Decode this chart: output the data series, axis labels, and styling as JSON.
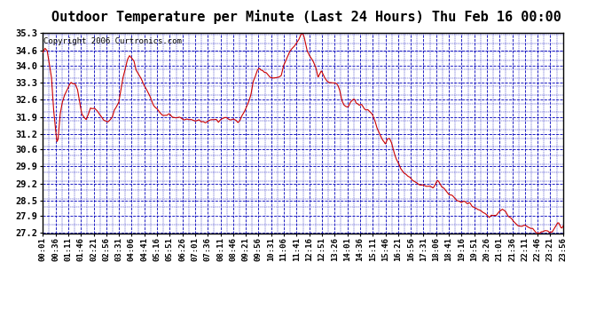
{
  "title": "Outdoor Temperature per Minute (Last 24 Hours) Thu Feb 16 00:00",
  "copyright": "Copyright 2006 Curtronics.com",
  "ylabel_values": [
    35.3,
    34.6,
    34.0,
    33.3,
    32.6,
    31.9,
    31.2,
    30.6,
    29.9,
    29.2,
    28.5,
    27.9,
    27.2
  ],
  "y_min": 27.2,
  "y_max": 35.3,
  "x_tick_labels": [
    "00:01",
    "00:36",
    "01:11",
    "01:46",
    "02:21",
    "02:56",
    "03:31",
    "04:06",
    "04:41",
    "05:16",
    "05:51",
    "06:26",
    "07:01",
    "07:36",
    "08:11",
    "08:46",
    "09:21",
    "09:56",
    "10:31",
    "11:06",
    "11:41",
    "12:16",
    "12:51",
    "13:26",
    "14:01",
    "14:36",
    "15:11",
    "15:46",
    "16:21",
    "16:56",
    "17:31",
    "18:06",
    "18:41",
    "19:16",
    "19:51",
    "20:26",
    "21:01",
    "21:36",
    "22:11",
    "22:46",
    "23:21",
    "23:56"
  ],
  "line_color": "#cc0000",
  "grid_color": "#0000bb",
  "bg_color": "#ffffff",
  "plot_bg_color": "#ffffff",
  "title_fontsize": 11,
  "copyright_fontsize": 6.5,
  "tick_fontsize": 6.5,
  "y_tick_fontsize": 7.5,
  "keypoints": [
    [
      0.0,
      34.5
    ],
    [
      0.1,
      34.7
    ],
    [
      0.2,
      34.6
    ],
    [
      0.4,
      33.5
    ],
    [
      0.5,
      32.2
    ],
    [
      0.6,
      31.3
    ],
    [
      0.65,
      30.9
    ],
    [
      0.7,
      31.0
    ],
    [
      0.75,
      31.5
    ],
    [
      0.8,
      32.0
    ],
    [
      0.9,
      32.5
    ],
    [
      1.0,
      32.8
    ],
    [
      1.1,
      33.0
    ],
    [
      1.3,
      33.3
    ],
    [
      1.5,
      33.2
    ],
    [
      1.6,
      33.0
    ],
    [
      1.7,
      32.5
    ],
    [
      1.8,
      32.0
    ],
    [
      1.9,
      31.9
    ],
    [
      2.0,
      31.8
    ],
    [
      2.1,
      32.0
    ],
    [
      2.2,
      32.3
    ],
    [
      2.4,
      32.3
    ],
    [
      2.5,
      32.2
    ],
    [
      2.6,
      32.0
    ],
    [
      2.8,
      31.8
    ],
    [
      3.0,
      31.7
    ],
    [
      3.1,
      31.8
    ],
    [
      3.2,
      31.9
    ],
    [
      3.3,
      32.2
    ],
    [
      3.5,
      32.5
    ],
    [
      3.7,
      33.5
    ],
    [
      3.9,
      34.2
    ],
    [
      4.0,
      34.4
    ],
    [
      4.1,
      34.3
    ],
    [
      4.2,
      34.2
    ],
    [
      4.3,
      33.8
    ],
    [
      4.5,
      33.5
    ],
    [
      4.7,
      33.2
    ],
    [
      4.9,
      32.8
    ],
    [
      5.0,
      32.6
    ],
    [
      5.1,
      32.4
    ],
    [
      5.2,
      32.3
    ],
    [
      5.3,
      32.2
    ],
    [
      5.5,
      32.0
    ],
    [
      5.7,
      32.0
    ],
    [
      5.9,
      32.0
    ],
    [
      6.0,
      31.9
    ],
    [
      6.2,
      31.9
    ],
    [
      6.4,
      31.9
    ],
    [
      6.5,
      31.8
    ],
    [
      6.7,
      31.8
    ],
    [
      6.9,
      31.8
    ],
    [
      7.0,
      31.8
    ],
    [
      7.2,
      31.8
    ],
    [
      7.3,
      31.7
    ],
    [
      7.5,
      31.7
    ],
    [
      7.7,
      31.8
    ],
    [
      7.9,
      31.8
    ],
    [
      8.0,
      31.8
    ],
    [
      8.1,
      31.7
    ],
    [
      8.2,
      31.8
    ],
    [
      8.4,
      31.9
    ],
    [
      8.5,
      31.9
    ],
    [
      8.7,
      31.8
    ],
    [
      8.9,
      31.8
    ],
    [
      9.0,
      31.7
    ],
    [
      9.1,
      31.8
    ],
    [
      9.2,
      32.0
    ],
    [
      9.4,
      32.3
    ],
    [
      9.5,
      32.5
    ],
    [
      9.6,
      32.8
    ],
    [
      9.7,
      33.3
    ],
    [
      9.8,
      33.5
    ],
    [
      9.9,
      33.8
    ],
    [
      10.0,
      33.9
    ],
    [
      10.1,
      33.8
    ],
    [
      10.2,
      33.7
    ],
    [
      10.3,
      33.7
    ],
    [
      10.4,
      33.6
    ],
    [
      10.5,
      33.5
    ],
    [
      10.6,
      33.5
    ],
    [
      10.7,
      33.5
    ],
    [
      10.8,
      33.5
    ],
    [
      10.9,
      33.5
    ],
    [
      11.0,
      33.6
    ],
    [
      11.05,
      33.8
    ],
    [
      11.1,
      34.0
    ],
    [
      11.2,
      34.2
    ],
    [
      11.3,
      34.4
    ],
    [
      11.35,
      34.5
    ],
    [
      11.4,
      34.6
    ],
    [
      11.5,
      34.7
    ],
    [
      11.6,
      34.8
    ],
    [
      11.7,
      34.9
    ],
    [
      11.8,
      35.0
    ],
    [
      11.85,
      35.1
    ],
    [
      11.9,
      35.2
    ],
    [
      11.95,
      35.3
    ],
    [
      12.0,
      35.3
    ],
    [
      12.05,
      35.2
    ],
    [
      12.1,
      35.0
    ],
    [
      12.15,
      34.8
    ],
    [
      12.2,
      34.6
    ],
    [
      12.3,
      34.4
    ],
    [
      12.4,
      34.3
    ],
    [
      12.5,
      34.1
    ],
    [
      12.6,
      33.9
    ],
    [
      12.65,
      33.7
    ],
    [
      12.7,
      33.5
    ],
    [
      12.75,
      33.6
    ],
    [
      12.8,
      33.7
    ],
    [
      12.85,
      33.8
    ],
    [
      12.9,
      33.7
    ],
    [
      13.0,
      33.5
    ],
    [
      13.1,
      33.4
    ],
    [
      13.2,
      33.3
    ],
    [
      13.3,
      33.3
    ],
    [
      13.4,
      33.3
    ],
    [
      13.5,
      33.3
    ],
    [
      13.6,
      33.2
    ],
    [
      13.7,
      33.0
    ],
    [
      13.75,
      32.8
    ],
    [
      13.8,
      32.6
    ],
    [
      13.85,
      32.5
    ],
    [
      13.9,
      32.4
    ],
    [
      14.0,
      32.3
    ],
    [
      14.1,
      32.3
    ],
    [
      14.15,
      32.4
    ],
    [
      14.2,
      32.5
    ],
    [
      14.3,
      32.6
    ],
    [
      14.4,
      32.6
    ],
    [
      14.45,
      32.5
    ],
    [
      14.5,
      32.5
    ],
    [
      14.6,
      32.4
    ],
    [
      14.7,
      32.4
    ],
    [
      14.8,
      32.3
    ],
    [
      14.9,
      32.2
    ],
    [
      15.0,
      32.2
    ],
    [
      15.1,
      32.1
    ],
    [
      15.2,
      32.0
    ],
    [
      15.3,
      31.8
    ],
    [
      15.4,
      31.5
    ],
    [
      15.5,
      31.3
    ],
    [
      15.6,
      31.1
    ],
    [
      15.7,
      30.9
    ],
    [
      15.8,
      30.8
    ],
    [
      15.85,
      30.9
    ],
    [
      15.9,
      31.0
    ],
    [
      16.0,
      31.0
    ],
    [
      16.1,
      30.8
    ],
    [
      16.2,
      30.5
    ],
    [
      16.3,
      30.2
    ],
    [
      16.4,
      30.0
    ],
    [
      16.5,
      29.8
    ],
    [
      16.7,
      29.6
    ],
    [
      16.9,
      29.5
    ],
    [
      17.0,
      29.4
    ],
    [
      17.1,
      29.3
    ],
    [
      17.2,
      29.2
    ],
    [
      17.3,
      29.2
    ],
    [
      17.5,
      29.2
    ],
    [
      17.7,
      29.1
    ],
    [
      17.9,
      29.1
    ],
    [
      18.0,
      29.1
    ],
    [
      18.1,
      29.2
    ],
    [
      18.2,
      29.3
    ],
    [
      18.3,
      29.2
    ],
    [
      18.5,
      29.0
    ],
    [
      18.7,
      28.8
    ],
    [
      18.9,
      28.7
    ],
    [
      19.0,
      28.6
    ],
    [
      19.1,
      28.5
    ],
    [
      19.2,
      28.5
    ],
    [
      19.3,
      28.5
    ],
    [
      19.5,
      28.5
    ],
    [
      19.6,
      28.4
    ],
    [
      19.7,
      28.4
    ],
    [
      19.8,
      28.3
    ],
    [
      20.0,
      28.2
    ],
    [
      20.2,
      28.1
    ],
    [
      20.4,
      28.0
    ],
    [
      20.5,
      27.9
    ],
    [
      20.6,
      27.8
    ],
    [
      20.7,
      27.9
    ],
    [
      20.8,
      27.9
    ],
    [
      20.9,
      27.9
    ],
    [
      21.0,
      28.0
    ],
    [
      21.1,
      28.1
    ],
    [
      21.2,
      28.2
    ],
    [
      21.3,
      28.1
    ],
    [
      21.4,
      28.0
    ],
    [
      21.5,
      27.9
    ],
    [
      21.6,
      27.8
    ],
    [
      21.7,
      27.7
    ],
    [
      21.8,
      27.6
    ],
    [
      21.9,
      27.5
    ],
    [
      22.0,
      27.5
    ],
    [
      22.1,
      27.5
    ],
    [
      22.2,
      27.5
    ],
    [
      22.3,
      27.5
    ],
    [
      22.4,
      27.4
    ],
    [
      22.5,
      27.4
    ],
    [
      22.6,
      27.4
    ],
    [
      22.7,
      27.3
    ],
    [
      22.8,
      27.2
    ],
    [
      22.9,
      27.2
    ],
    [
      23.0,
      27.3
    ],
    [
      23.1,
      27.3
    ],
    [
      23.2,
      27.3
    ],
    [
      23.3,
      27.3
    ],
    [
      23.4,
      27.2
    ],
    [
      23.5,
      27.2
    ],
    [
      23.55,
      27.3
    ],
    [
      23.6,
      27.4
    ],
    [
      23.7,
      27.5
    ],
    [
      23.75,
      27.6
    ],
    [
      23.8,
      27.6
    ],
    [
      23.85,
      27.5
    ],
    [
      23.9,
      27.4
    ],
    [
      23.95,
      27.4
    ],
    [
      24.0,
      27.5
    ]
  ]
}
